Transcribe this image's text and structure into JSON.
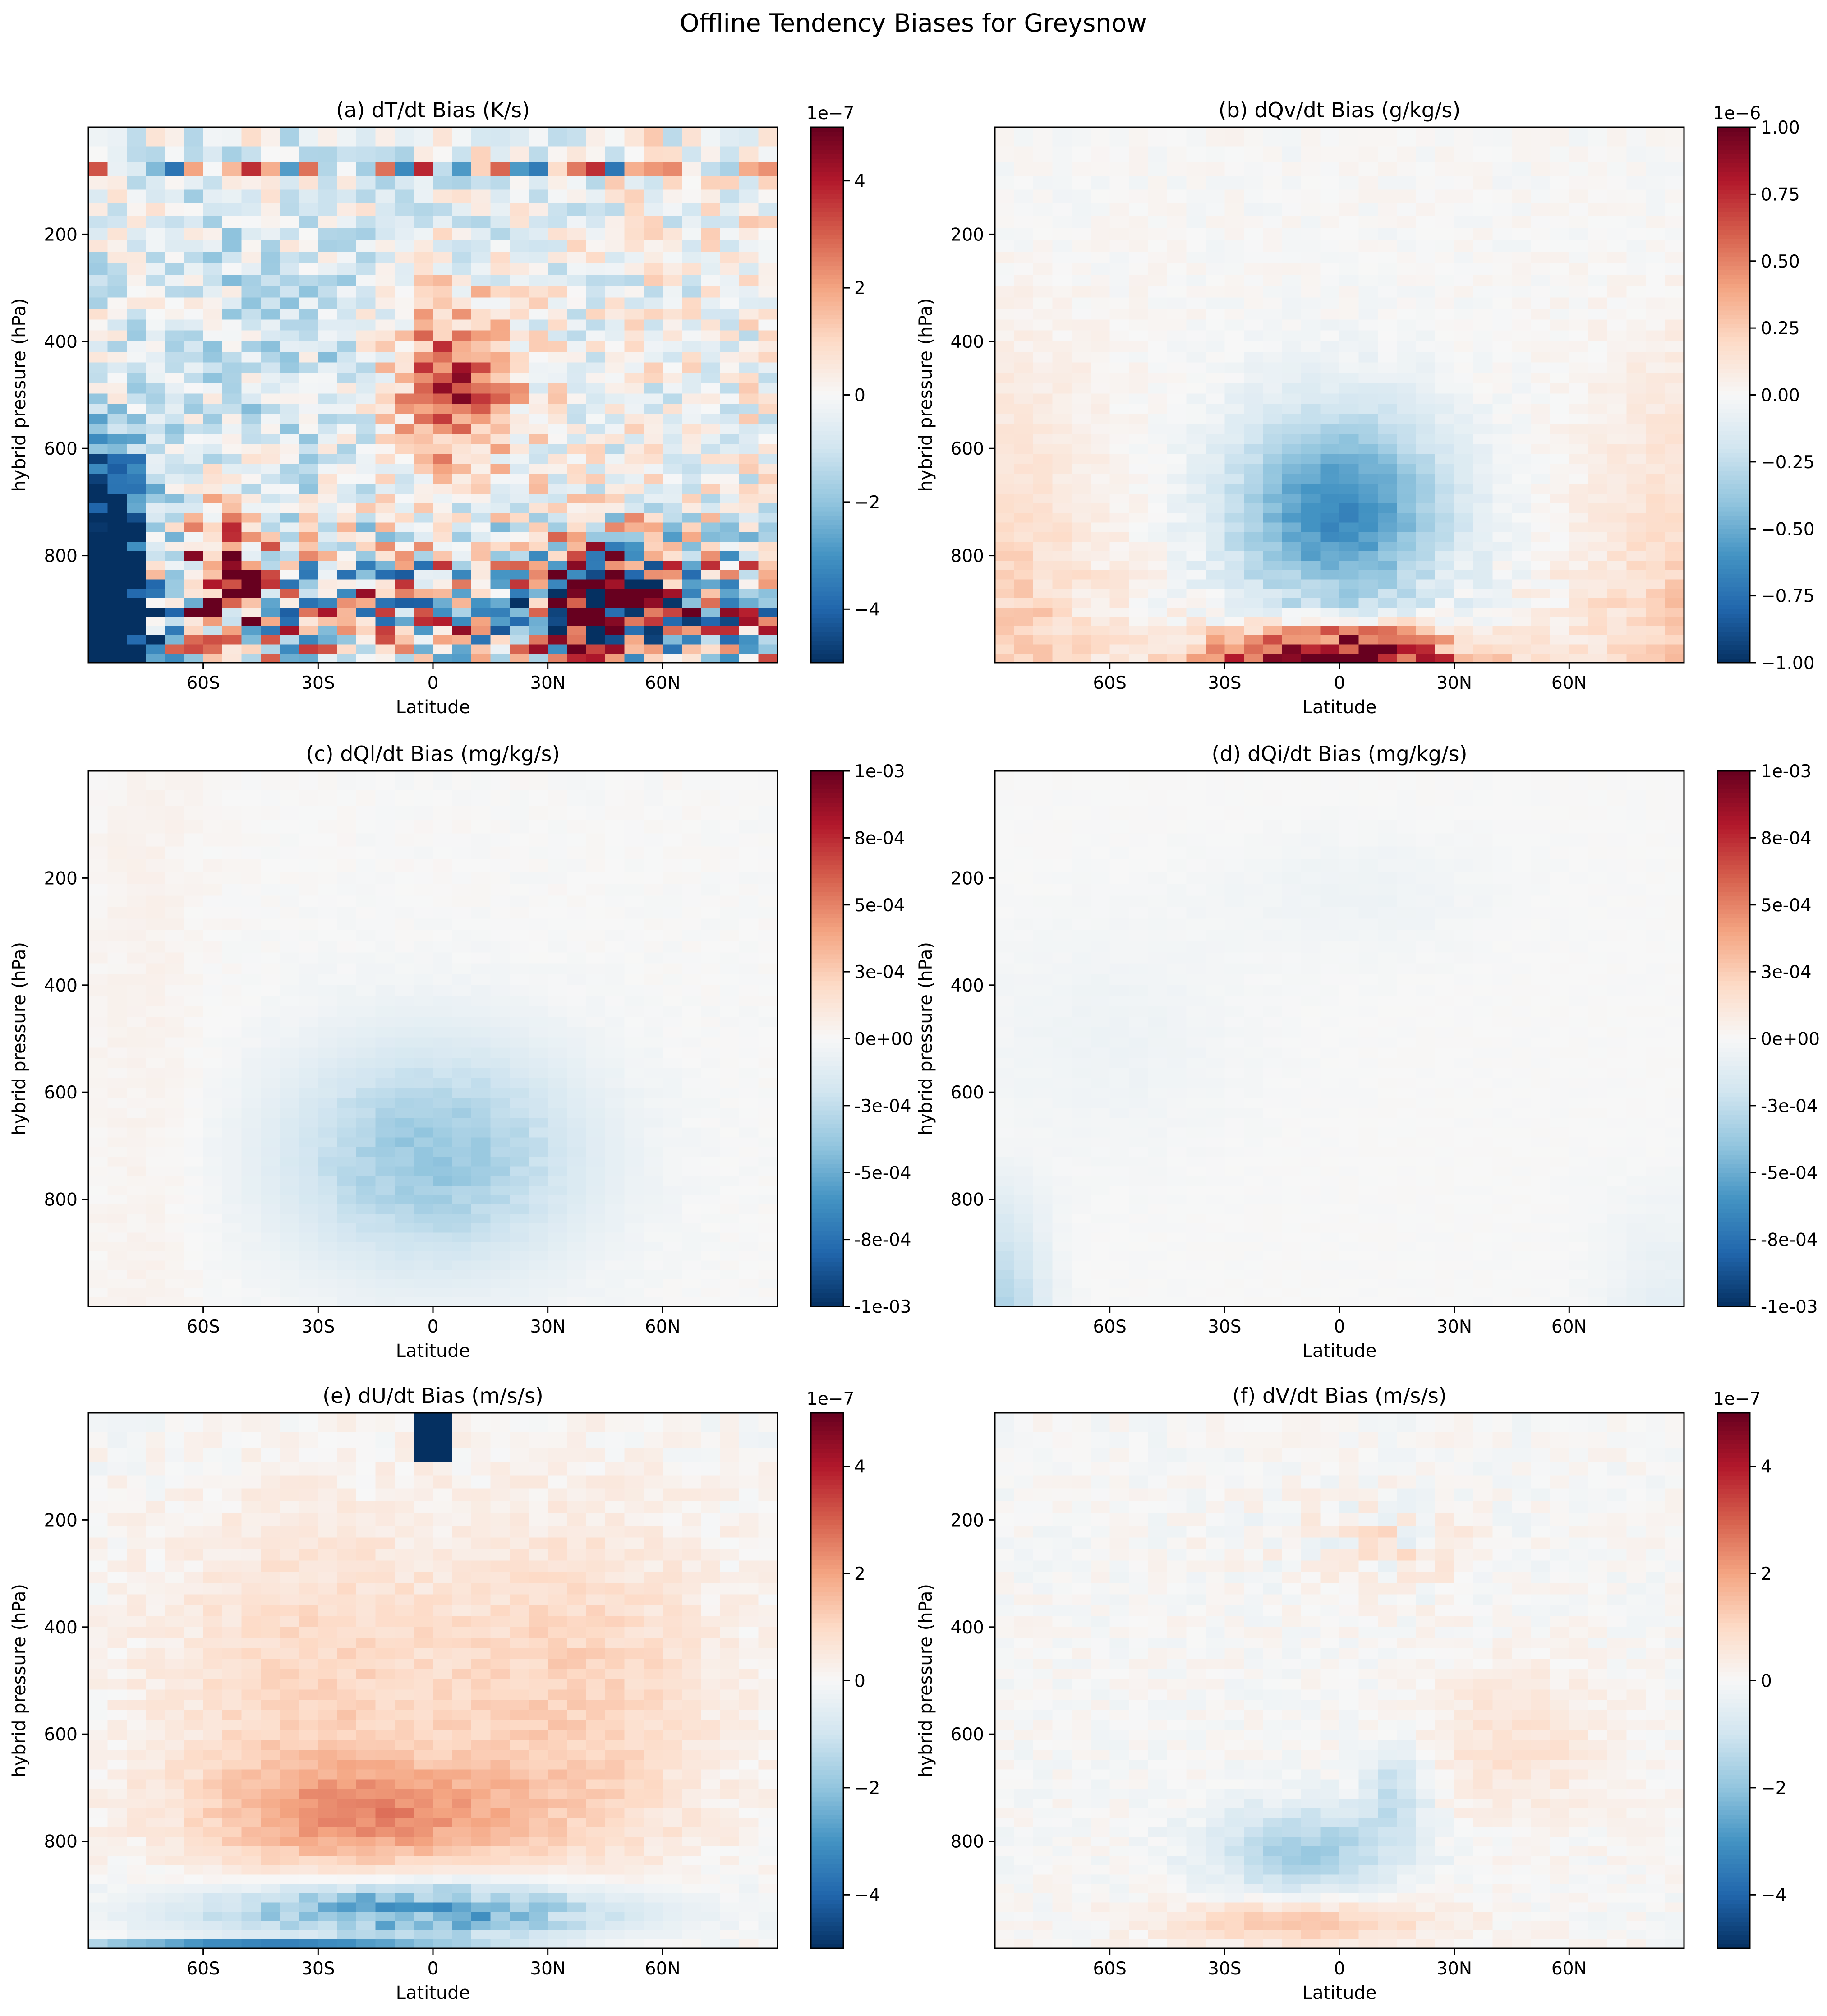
{
  "figure_title": "Offline Tendency Biases for Greysnow",
  "chart_data": [
    {
      "type": "heatmap",
      "title": "(a) dT/dt Bias (K/s)",
      "xlabel": "Latitude",
      "ylabel": "hybrid pressure (hPa)",
      "xlim": [
        -90,
        90
      ],
      "ylim": [
        1000,
        0
      ],
      "xticks": [
        -60,
        -30,
        0,
        30,
        60
      ],
      "xticklabels": [
        "60S",
        "30S",
        "0",
        "30N",
        "60N"
      ],
      "yticks": [
        200,
        400,
        600,
        800
      ],
      "yticklabels": [
        "200",
        "400",
        "600",
        "800"
      ],
      "colormap": "RdBu_r",
      "clim": [
        -5e-07,
        5e-07
      ],
      "colorbar_offset_label": "1e−7",
      "colorbar_ticks": [
        -4,
        -2,
        0,
        2,
        4
      ],
      "colorbar_ticklabels": [
        "−4",
        "−2",
        "0",
        "2",
        "4"
      ],
      "pattern": "t",
      "amplitude": 1.0
    },
    {
      "type": "heatmap",
      "title": "(b) dQv/dt Bias (g/kg/s)",
      "xlabel": "Latitude",
      "ylabel": "hybrid pressure (hPa)",
      "xlim": [
        -90,
        90
      ],
      "ylim": [
        1000,
        0
      ],
      "xticks": [
        -60,
        -30,
        0,
        30,
        60
      ],
      "xticklabels": [
        "60S",
        "30S",
        "0",
        "30N",
        "60N"
      ],
      "yticks": [
        200,
        400,
        600,
        800
      ],
      "yticklabels": [
        "200",
        "400",
        "600",
        "800"
      ],
      "colormap": "RdBu_r",
      "clim": [
        -1e-06,
        1e-06
      ],
      "colorbar_offset_label": "1e−6",
      "colorbar_ticks": [
        -1.0,
        -0.75,
        -0.5,
        -0.25,
        0.0,
        0.25,
        0.5,
        0.75,
        1.0
      ],
      "colorbar_ticklabels": [
        "−1.00",
        "−0.75",
        "−0.50",
        "−0.25",
        "0.00",
        "0.25",
        "0.50",
        "0.75",
        "1.00"
      ],
      "pattern": "qv",
      "amplitude": 1.0
    },
    {
      "type": "heatmap",
      "title": "(c) dQl/dt Bias (mg/kg/s)",
      "xlabel": "Latitude",
      "ylabel": "hybrid pressure (hPa)",
      "xlim": [
        -90,
        90
      ],
      "ylim": [
        1000,
        0
      ],
      "xticks": [
        -60,
        -30,
        0,
        30,
        60
      ],
      "xticklabels": [
        "60S",
        "30S",
        "0",
        "30N",
        "60N"
      ],
      "yticks": [
        200,
        400,
        600,
        800
      ],
      "yticklabels": [
        "200",
        "400",
        "600",
        "800"
      ],
      "colormap": "RdBu_r",
      "clim": [
        -0.001,
        0.001
      ],
      "colorbar_offset_label": "",
      "colorbar_ticks": [
        -0.001,
        -0.00075,
        -0.0005,
        -0.00025,
        0.0,
        0.00025,
        0.0005,
        0.00075,
        0.001
      ],
      "colorbar_ticklabels": [
        "-1e-03",
        "-8e-04",
        "-5e-04",
        "-3e-04",
        "0e+00",
        "3e-04",
        "5e-04",
        "8e-04",
        "1e-03"
      ],
      "pattern": "ql",
      "amplitude": 1.0
    },
    {
      "type": "heatmap",
      "title": "(d) dQi/dt Bias (mg/kg/s)",
      "xlabel": "Latitude",
      "ylabel": "hybrid pressure (hPa)",
      "xlim": [
        -90,
        90
      ],
      "ylim": [
        1000,
        0
      ],
      "xticks": [
        -60,
        -30,
        0,
        30,
        60
      ],
      "xticklabels": [
        "60S",
        "30S",
        "0",
        "30N",
        "60N"
      ],
      "yticks": [
        200,
        400,
        600,
        800
      ],
      "yticklabels": [
        "200",
        "400",
        "600",
        "800"
      ],
      "colormap": "RdBu_r",
      "clim": [
        -0.001,
        0.001
      ],
      "colorbar_offset_label": "",
      "colorbar_ticks": [
        -0.001,
        -0.00075,
        -0.0005,
        -0.00025,
        0.0,
        0.00025,
        0.0005,
        0.00075,
        0.001
      ],
      "colorbar_ticklabels": [
        "-1e-03",
        "-8e-04",
        "-5e-04",
        "-3e-04",
        "0e+00",
        "3e-04",
        "5e-04",
        "8e-04",
        "1e-03"
      ],
      "pattern": "qi",
      "amplitude": 1.0
    },
    {
      "type": "heatmap",
      "title": "(e) dU/dt Bias (m/s/s)",
      "xlabel": "Latitude",
      "ylabel": "hybrid pressure (hPa)",
      "xlim": [
        -90,
        90
      ],
      "ylim": [
        1000,
        0
      ],
      "xticks": [
        -60,
        -30,
        0,
        30,
        60
      ],
      "xticklabels": [
        "60S",
        "30S",
        "0",
        "30N",
        "60N"
      ],
      "yticks": [
        200,
        400,
        600,
        800
      ],
      "yticklabels": [
        "200",
        "400",
        "600",
        "800"
      ],
      "colormap": "RdBu_r",
      "clim": [
        -5e-07,
        5e-07
      ],
      "colorbar_offset_label": "1e−7",
      "colorbar_ticks": [
        -4,
        -2,
        0,
        2,
        4
      ],
      "colorbar_ticklabels": [
        "−4",
        "−2",
        "0",
        "2",
        "4"
      ],
      "pattern": "u",
      "amplitude": 1.0
    },
    {
      "type": "heatmap",
      "title": "(f) dV/dt Bias (m/s/s)",
      "xlabel": "Latitude",
      "ylabel": "hybrid pressure (hPa)",
      "xlim": [
        -90,
        90
      ],
      "ylim": [
        1000,
        0
      ],
      "xticks": [
        -60,
        -30,
        0,
        30,
        60
      ],
      "xticklabels": [
        "60S",
        "30S",
        "0",
        "30N",
        "60N"
      ],
      "yticks": [
        200,
        400,
        600,
        800
      ],
      "yticklabels": [
        "200",
        "400",
        "600",
        "800"
      ],
      "colormap": "RdBu_r",
      "clim": [
        -5e-07,
        5e-07
      ],
      "colorbar_offset_label": "1e−7",
      "colorbar_ticks": [
        -4,
        -2,
        0,
        2,
        4
      ],
      "colorbar_ticklabels": [
        "−4",
        "−2",
        "0",
        "2",
        "4"
      ],
      "pattern": "v",
      "amplitude": 1.0
    }
  ]
}
